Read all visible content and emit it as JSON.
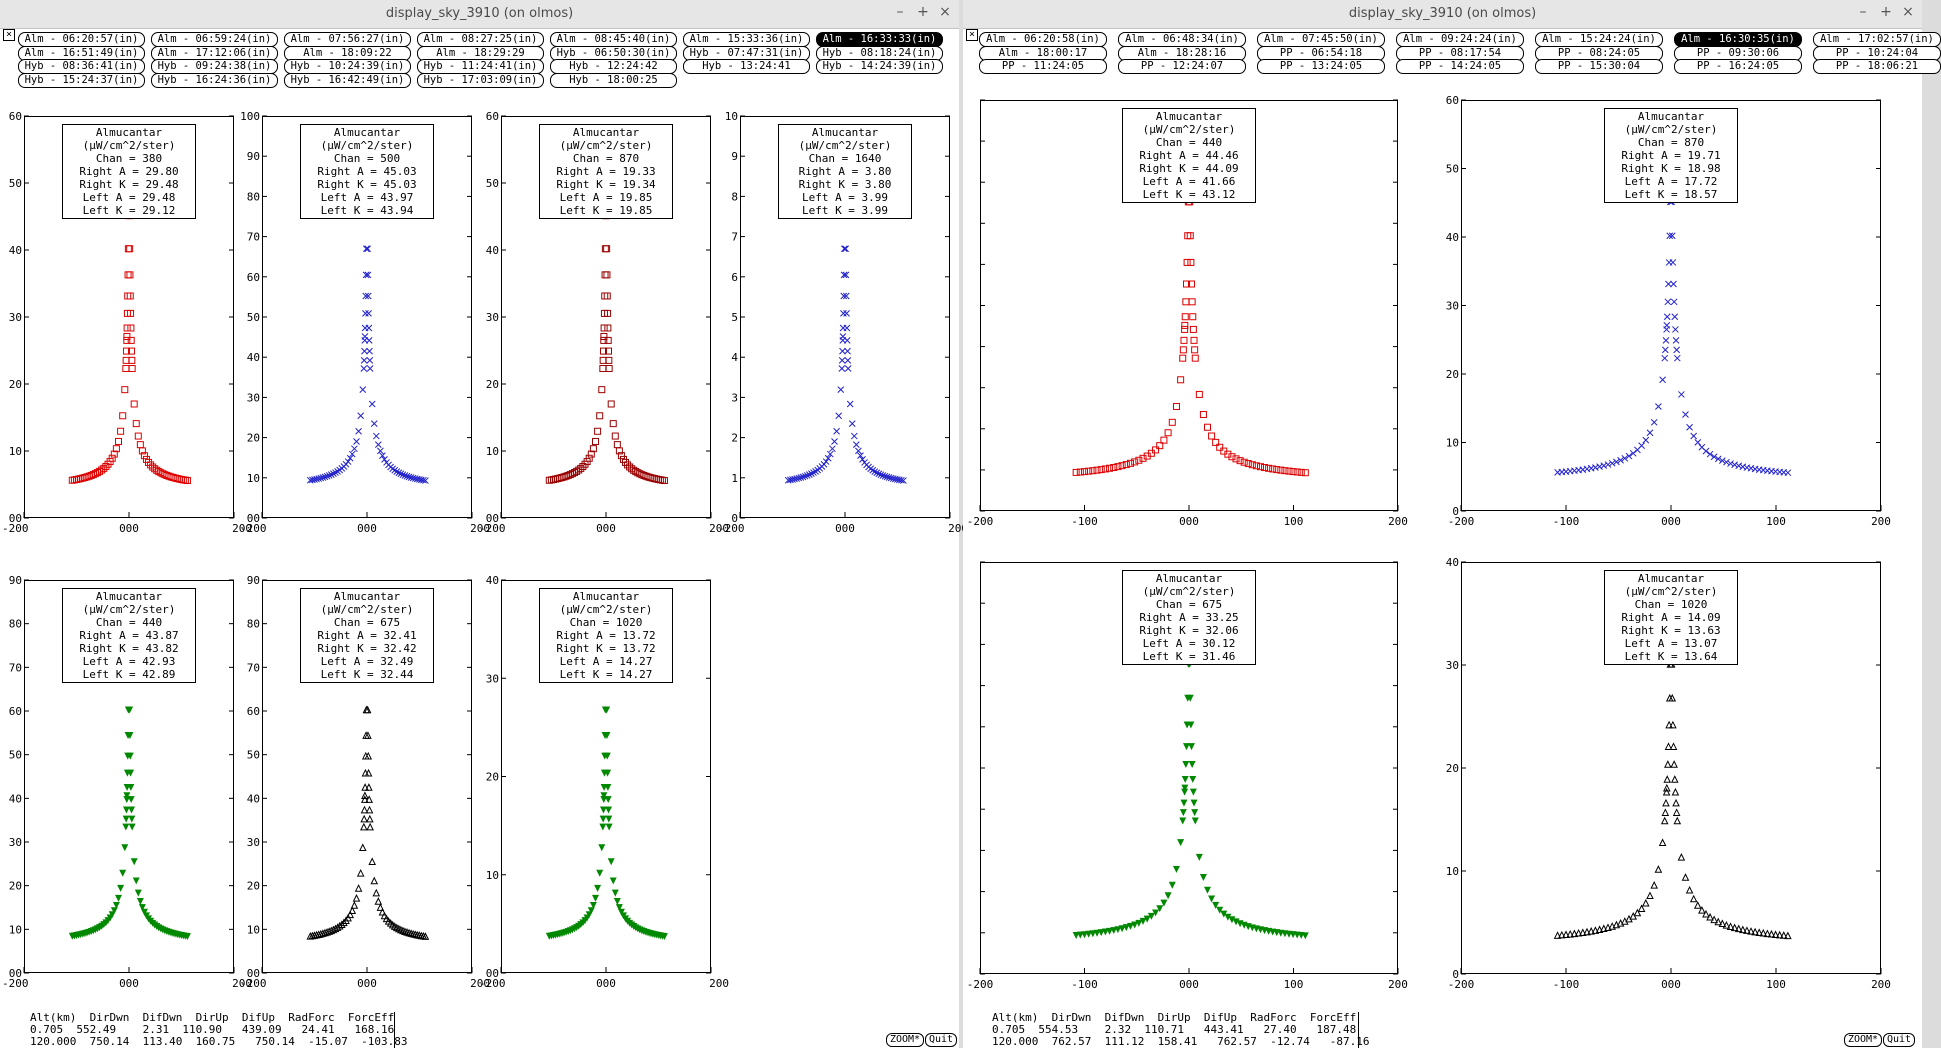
{
  "windows": [
    {
      "title": "display_sky_3910 (on olmos)",
      "buttons": [
        [
          "Alm - 06:20:57(in)",
          "Alm - 06:59:24(in)",
          "Alm - 07:56:27(in)",
          "Alm - 08:27:25(in)",
          "Alm - 08:45:40(in)",
          "Alm - 15:33:36(in)",
          "Alm - 16:33:33(in)"
        ],
        [
          "Alm - 16:51:49(in)",
          "Alm - 17:12:06(in)",
          "Alm - 18:09:22",
          "Alm - 18:29:29",
          "Hyb - 06:50:30(in)",
          "Hyb - 07:47:31(in)",
          "Hyb - 08:18:24(in)"
        ],
        [
          "Hyb - 08:36:41(in)",
          "Hyb - 09:24:38(in)",
          "Hyb - 10:24:39(in)",
          "Hyb - 11:24:41(in)",
          "Hyb - 12:24:42",
          "Hyb - 13:24:41",
          "Hyb - 14:24:39(in)"
        ],
        [
          "Hyb - 15:24:37(in)",
          "Hyb - 16:24:36(in)",
          "Hyb - 16:42:49(in)",
          "Hyb - 17:03:09(in)",
          "Hyb - 18:00:25"
        ]
      ],
      "selected_button": "Alm - 16:33:33(in)",
      "stats_text": "Alt(km)  DirDwn  DifDwn  DirUp  DifUp  RadForc  ForcEff\n0.705  552.49    2.31  110.90   439.09   24.41   168.16\n120.000  750.14  113.40  160.75   750.14  -15.07  -103.83",
      "zoom_label": "ZOOM*",
      "quit_label": "Quit"
    },
    {
      "title": "display_sky_3910 (on olmos)",
      "buttons": [
        [
          "Alm - 06:20:58(in)",
          "Alm - 06:48:34(in)",
          "Alm - 07:45:50(in)",
          "Alm - 09:24:24(in)",
          "Alm - 15:24:24(in)",
          "Alm - 16:30:35(in)",
          "Alm - 17:02:57(in)"
        ],
        [
          "Alm - 18:00:17",
          "Alm - 18:28:16",
          "PP - 06:54:18",
          "PP - 08:17:54",
          "PP - 08:24:05",
          "PP - 09:30:06",
          "PP - 10:24:04"
        ],
        [
          "PP - 11:24:05",
          "PP - 12:24:07",
          "PP - 13:24:05",
          "PP - 14:24:05",
          "PP - 15:30:04",
          "PP - 16:24:05",
          "PP - 18:06:21"
        ]
      ],
      "selected_button": "Alm - 16:30:35(in)",
      "stats_text": "Alt(km)  DirDwn  DifDwn  DirUp  DifUp  RadForc  ForcEff\n0.705  554.53    2.32  110.71   443.41   27.40   187.48\n120.000  762.57  111.12  158.41   762.57  -12.74   -87.16",
      "zoom_label": "ZOOM*",
      "quit_label": "Quit"
    }
  ],
  "panel_label": "Almucantar (μW/cm^2/ster)",
  "x_ticks": [
    "-200",
    "000",
    "200"
  ],
  "x_ticks_right": [
    "-200",
    "-100",
    "000",
    "100",
    "200"
  ],
  "colors": {
    "red": "#dd0000",
    "blue": "#2222cc",
    "darkred": "#990000",
    "green": "#008800",
    "black": "#000000"
  },
  "chart_data": [
    {
      "type": "scatter",
      "window": 0,
      "chan": 380,
      "ylim": [
        0,
        60
      ],
      "yticks": [
        "00",
        "10",
        "20",
        "30",
        "40",
        "50",
        "60"
      ],
      "xlim": [
        -200,
        200
      ],
      "marker": "square",
      "color": "red",
      "info": [
        "Chan = 380",
        "Right A = 29.80",
        "Right K = 29.48",
        "Left A = 29.48",
        "Left K = 29.12"
      ]
    },
    {
      "type": "scatter",
      "window": 0,
      "chan": 500,
      "ylim": [
        0,
        100
      ],
      "yticks": [
        "00",
        "10",
        "20",
        "30",
        "40",
        "50",
        "60",
        "70",
        "80",
        "90",
        "100"
      ],
      "xlim": [
        -200,
        200
      ],
      "marker": "x",
      "color": "blue",
      "info": [
        "Chan = 500",
        "Right A = 45.03",
        "Right K = 45.03",
        "Left A = 43.97",
        "Left K = 43.94"
      ]
    },
    {
      "type": "scatter",
      "window": 0,
      "chan": 870,
      "ylim": [
        0,
        60
      ],
      "yticks": [
        "00",
        "10",
        "20",
        "30",
        "40",
        "50",
        "60"
      ],
      "xlim": [
        -200,
        200
      ],
      "marker": "square",
      "color": "darkred",
      "info": [
        "Chan = 870",
        "Right A = 19.33",
        "Right K = 19.34",
        "Left A = 19.85",
        "Left K = 19.85"
      ]
    },
    {
      "type": "scatter",
      "window": 0,
      "chan": 1640,
      "ylim": [
        0,
        10
      ],
      "yticks": [
        "0",
        "1",
        "2",
        "3",
        "4",
        "5",
        "6",
        "7",
        "8",
        "9",
        "10"
      ],
      "xlim": [
        -200,
        200
      ],
      "marker": "x",
      "color": "blue",
      "info": [
        "Chan = 1640",
        "Right A = 3.80",
        "Right K = 3.80",
        "Left A = 3.99",
        "Left K = 3.99"
      ]
    },
    {
      "type": "scatter",
      "window": 0,
      "chan": 440,
      "ylim": [
        0,
        90
      ],
      "yticks": [
        "00",
        "10",
        "20",
        "30",
        "40",
        "50",
        "60",
        "70",
        "80",
        "90"
      ],
      "xlim": [
        -200,
        200
      ],
      "marker": "tri-down",
      "color": "green",
      "info": [
        "Chan = 440",
        "Right A = 43.87",
        "Right K = 43.82",
        "Left A = 42.93",
        "Left K = 42.89"
      ]
    },
    {
      "type": "scatter",
      "window": 0,
      "chan": 675,
      "ylim": [
        0,
        90
      ],
      "yticks": [
        "00",
        "10",
        "20",
        "30",
        "40",
        "50",
        "60",
        "70",
        "80",
        "90"
      ],
      "xlim": [
        -200,
        200
      ],
      "marker": "tri-up",
      "color": "black",
      "info": [
        "Chan = 675",
        "Right A = 32.41",
        "Right K = 32.42",
        "Left A = 32.49",
        "Left K = 32.44"
      ]
    },
    {
      "type": "scatter",
      "window": 0,
      "chan": 1020,
      "ylim": [
        0,
        40
      ],
      "yticks": [
        "00",
        "10",
        "20",
        "30",
        "40"
      ],
      "xlim": [
        -200,
        200
      ],
      "marker": "tri-down",
      "color": "green",
      "info": [
        "Chan = 1020",
        "Right A = 13.72",
        "Right K = 13.72",
        "Left A = 14.27",
        "Left K = 14.27"
      ]
    },
    {
      "type": "scatter",
      "window": 1,
      "chan": 440,
      "ylim": [
        0,
        100
      ],
      "yticks": [
        "",
        "",
        "",
        "",
        "",
        "",
        "",
        "",
        "",
        "",
        ""
      ],
      "xlim": [
        -200,
        200
      ],
      "marker": "square",
      "color": "red",
      "info": [
        "Chan = 440",
        "Right A = 44.46",
        "Right K = 44.09",
        "Left A = 41.66",
        "Left K = 43.12"
      ]
    },
    {
      "type": "scatter",
      "window": 1,
      "chan": 870,
      "ylim": [
        0,
        60
      ],
      "yticks": [
        "0",
        "10",
        "20",
        "30",
        "40",
        "50",
        "60"
      ],
      "xlim": [
        -200,
        200
      ],
      "marker": "x",
      "color": "blue",
      "info": [
        "Chan = 870",
        "Right A = 19.71",
        "Right K = 18.98",
        "Left A = 17.72",
        "Left K = 18.57"
      ]
    },
    {
      "type": "scatter",
      "window": 1,
      "chan": 675,
      "ylim": [
        0,
        100
      ],
      "yticks": [
        "",
        "",
        "",
        "",
        "",
        "",
        "",
        "",
        "",
        "",
        ""
      ],
      "xlim": [
        -200,
        200
      ],
      "marker": "tri-down",
      "color": "green",
      "info": [
        "Chan = 675",
        "Right A = 33.25",
        "Right K = 32.06",
        "Left A = 30.12",
        "Left K = 31.46"
      ]
    },
    {
      "type": "scatter",
      "window": 1,
      "chan": 1020,
      "ylim": [
        0,
        40
      ],
      "yticks": [
        "0",
        "10",
        "20",
        "30",
        "40"
      ],
      "xlim": [
        -200,
        200
      ],
      "marker": "tri-up",
      "color": "black",
      "info": [
        "Chan = 1020",
        "Right A = 14.09",
        "Right K = 13.63",
        "Left A = 13.07",
        "Left K = 13.64"
      ]
    }
  ]
}
